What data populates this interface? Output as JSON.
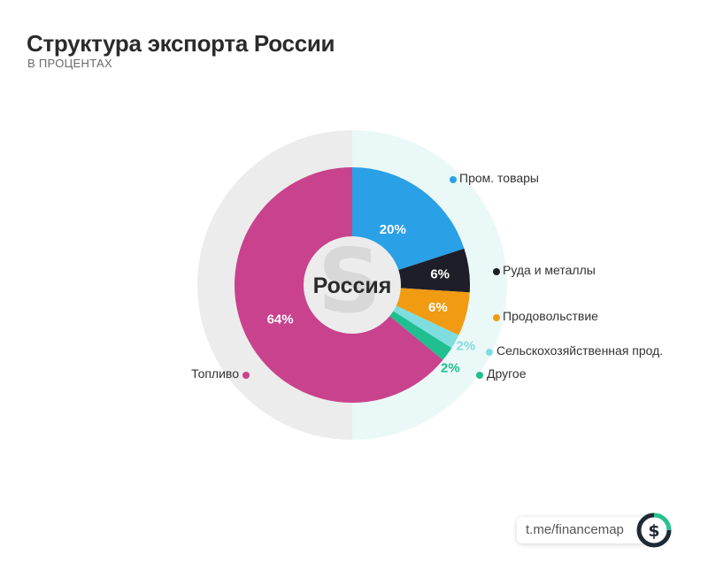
{
  "header": {
    "title": "Структура экспорта России",
    "subtitle": "В ПРОЦЕНТАХ"
  },
  "chart_data": {
    "type": "pie",
    "title": "Структура экспорта России",
    "subtitle": "В ПРОЦЕНТАХ",
    "center_label": "Россия",
    "slices": [
      {
        "name": "Пром. товары",
        "value": 20,
        "label": "20%",
        "color": "#2aa0e6"
      },
      {
        "name": "Руда и металлы",
        "value": 6,
        "label": "6%",
        "color": "#1e1e28"
      },
      {
        "name": "Продовольствие",
        "value": 6,
        "label": "6%",
        "color": "#f09b12"
      },
      {
        "name": "Сельскохозяйственная прод.",
        "value": 2,
        "label": "2%",
        "color": "#7fdde0"
      },
      {
        "name": "Другое",
        "value": 2,
        "label": "2%",
        "color": "#1fbf8f"
      },
      {
        "name": "Топливо",
        "value": 64,
        "label": "64%",
        "color": "#c9428d"
      }
    ]
  },
  "footer": {
    "link_text": "t.me/financemap",
    "logo_icon": "dollar-logo-icon"
  }
}
